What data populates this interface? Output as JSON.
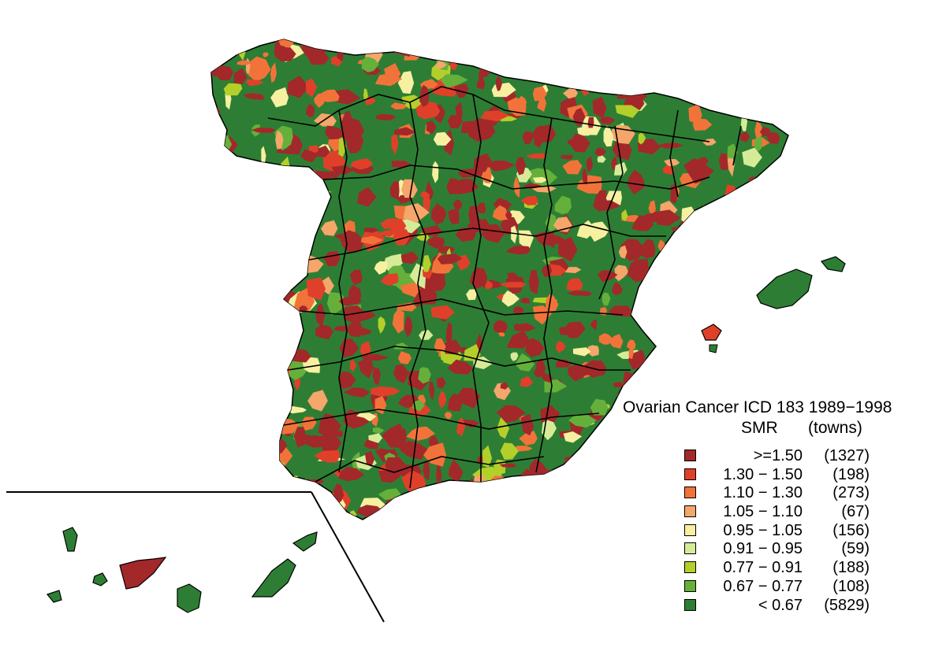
{
  "legend": {
    "title": "Ovarian Cancer ICD 183 1989−1998",
    "col_label": "SMR",
    "count_label": "(towns)",
    "items": [
      {
        "range": ">=1.50",
        "count": "(1327)",
        "color": "#a3282a"
      },
      {
        "range": "1.30 − 1.50",
        "count": "(198)",
        "color": "#e0402a"
      },
      {
        "range": "1.10 − 1.30",
        "count": "(273)",
        "color": "#f2733a"
      },
      {
        "range": "1.05 − 1.10",
        "count": "(67)",
        "color": "#f5a66a"
      },
      {
        "range": "0.95 − 1.05",
        "count": "(156)",
        "color": "#f6f0a0"
      },
      {
        "range": "0.91 − 0.95",
        "count": "(59)",
        "color": "#d6eb98"
      },
      {
        "range": "0.77 − 0.91",
        "count": "(188)",
        "color": "#b3cf2a"
      },
      {
        "range": "0.67 − 0.77",
        "count": "(108)",
        "color": "#64b03a"
      },
      {
        "range": "< 0.67",
        "count": "(5829)",
        "color": "#2d7e34"
      }
    ]
  },
  "map": {
    "base_color": "#2d7e34",
    "border_color": "#000000"
  }
}
